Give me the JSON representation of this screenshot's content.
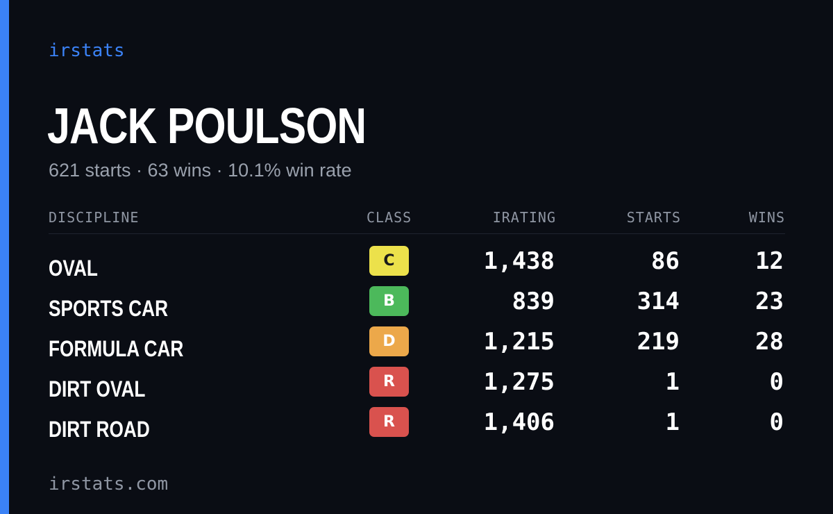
{
  "brand": "irstats",
  "driver": {
    "name": "JACK POULSON",
    "summary": "621 starts · 63 wins · 10.1% win rate"
  },
  "table": {
    "headers": {
      "discipline": "DISCIPLINE",
      "class": "CLASS",
      "irating": "IRATING",
      "starts": "STARTS",
      "wins": "WINS"
    },
    "rows": [
      {
        "discipline": "OVAL",
        "class": "C",
        "class_bg": "#ece14b",
        "class_fg": "#1a1a1a",
        "irating": "1,438",
        "starts": "86",
        "wins": "12"
      },
      {
        "discipline": "SPORTS CAR",
        "class": "B",
        "class_bg": "#4cb95b",
        "class_fg": "#ffffff",
        "irating": "839",
        "starts": "314",
        "wins": "23"
      },
      {
        "discipline": "FORMULA CAR",
        "class": "D",
        "class_bg": "#eca84a",
        "class_fg": "#ffffff",
        "irating": "1,215",
        "starts": "219",
        "wins": "28"
      },
      {
        "discipline": "DIRT OVAL",
        "class": "R",
        "class_bg": "#d9524e",
        "class_fg": "#ffffff",
        "irating": "1,275",
        "starts": "1",
        "wins": "0"
      },
      {
        "discipline": "DIRT ROAD",
        "class": "R",
        "class_bg": "#d9524e",
        "class_fg": "#ffffff",
        "irating": "1,406",
        "starts": "1",
        "wins": "0"
      }
    ]
  },
  "footer": {
    "url": "irstats.com"
  },
  "colors": {
    "background": "#0a0d14",
    "accent": "#3b82f6",
    "muted_text": "#9aa1ad"
  }
}
